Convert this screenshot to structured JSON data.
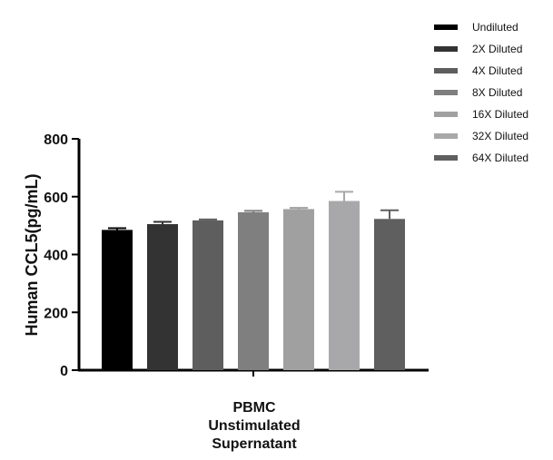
{
  "chart_data": {
    "type": "bar",
    "category_label_lines": [
      "PBMC",
      "Unstimulated",
      "Supernatant"
    ],
    "ylabel": "Human CCL5(pg/mL)",
    "ylim": [
      0,
      800
    ],
    "yticks": [
      0,
      200,
      400,
      600,
      800
    ],
    "grid": false,
    "legend_position": "top-right",
    "series": [
      {
        "name": "Undiluted",
        "value": 485,
        "error": 6,
        "color": "#000000"
      },
      {
        "name": "2X Diluted",
        "value": 505,
        "error": 8,
        "color": "#333333"
      },
      {
        "name": "4X Diluted",
        "value": 518,
        "error": 3,
        "color": "#5e5e5e"
      },
      {
        "name": "8X Diluted",
        "value": 546,
        "error": 5,
        "color": "#7f7f7f"
      },
      {
        "name": "16X Diluted",
        "value": 557,
        "error": 4,
        "color": "#a0a0a0"
      },
      {
        "name": "32X Diluted",
        "value": 585,
        "error": 32,
        "color": "#a8a8aa"
      },
      {
        "name": "64X Diluted",
        "value": 523,
        "error": 30,
        "color": "#5f5f5f"
      }
    ]
  }
}
